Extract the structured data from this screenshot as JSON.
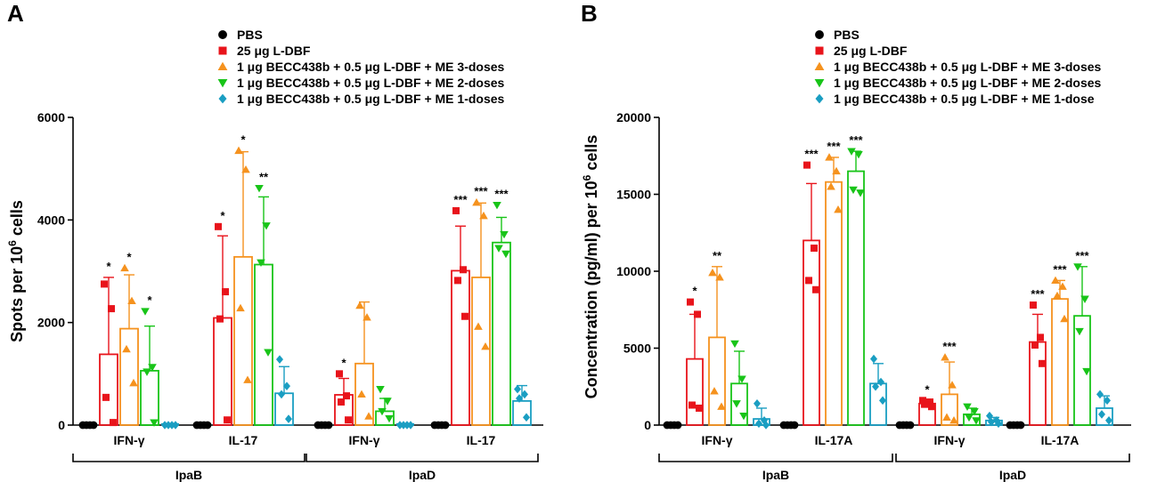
{
  "colors": {
    "PBS": "#000000",
    "LDBF": "#e8141b",
    "D3": "#f5921e",
    "D2": "#18c418",
    "D1": "#1a9ec2"
  },
  "chart_data": [
    {
      "type": "bar",
      "panel": "A",
      "ylabel": "Spots per 10^6 cells",
      "ylabel_main": "Spots per 10",
      "ylabel_sup": "6",
      "ylabel_tail": " cells",
      "ylim": [
        0,
        6000
      ],
      "yticks": [
        0,
        2000,
        4000,
        6000
      ],
      "ytick_labels": [
        "0",
        "2000",
        "4000",
        "6000"
      ],
      "legend": [
        {
          "name": "PBS",
          "marker": "circle"
        },
        {
          "name": "25 μg L-DBF",
          "marker": "square"
        },
        {
          "name": "1 μg BECC438b + 0.5 μg L-DBF + ME 3-doses",
          "marker": "triangle-up"
        },
        {
          "name": "1 μg BECC438b + 0.5 μg L-DBF + ME 2-doses",
          "marker": "triangle-down"
        },
        {
          "name": "1 μg BECC438b + 0.5 μg L-DBF + ME 1-doses",
          "marker": "diamond"
        }
      ],
      "groups": [
        {
          "label": "IpaB",
          "categories": [
            "IFN-γ",
            "IL-17"
          ]
        },
        {
          "label": "IpaD",
          "categories": [
            "IFN-γ",
            "IL-17"
          ]
        }
      ],
      "categories": [
        "IFN-γ",
        "IL-17",
        "IFN-γ",
        "IL-17"
      ],
      "series": [
        {
          "name": "PBS",
          "values": [
            0,
            0,
            0,
            0
          ],
          "sd": [
            0,
            0,
            0,
            0
          ],
          "points": [
            [
              0,
              0,
              0,
              0
            ],
            [
              0,
              0,
              0,
              0
            ],
            [
              0,
              0,
              0,
              0
            ],
            [
              0,
              0,
              0,
              0
            ]
          ],
          "sig": [
            "",
            "",
            "",
            ""
          ]
        },
        {
          "name": "25 μg L-DBF",
          "values": [
            1380,
            2090,
            590,
            3010
          ],
          "sd": [
            1500,
            1600,
            320,
            870
          ],
          "points": [
            [
              2750,
              2270,
              540,
              50
            ],
            [
              3870,
              2600,
              2070,
              100
            ],
            [
              1000,
              570,
              450,
              100
            ],
            [
              4180,
              3030,
              2820,
              2120
            ]
          ],
          "sig": [
            "*",
            "*",
            "*",
            "***"
          ]
        },
        {
          "name": "1 μg BECC438b + 0.5 μg L-DBF + ME 3-doses",
          "values": [
            1880,
            3280,
            1200,
            2880
          ],
          "sd": [
            1050,
            2050,
            1200,
            1450
          ],
          "points": [
            [
              3060,
              2420,
              1480,
              820
            ],
            [
              5350,
              4980,
              2280,
              880
            ],
            [
              2330,
              2100,
              600,
              170
            ],
            [
              4340,
              4080,
              1920,
              1530
            ]
          ],
          "sig": [
            "*",
            "*",
            "",
            "***"
          ]
        },
        {
          "name": "1 μg BECC438b + 0.5 μg L-DBF + ME 2-doses",
          "values": [
            1060,
            3130,
            270,
            3560
          ],
          "sd": [
            870,
            1320,
            250,
            490
          ],
          "points": [
            [
              2220,
              1130,
              1040,
              50
            ],
            [
              4620,
              3890,
              3170,
              1420
            ],
            [
              700,
              470,
              270,
              130
            ],
            [
              4290,
              3720,
              3450,
              3340
            ]
          ],
          "sig": [
            "*",
            "**",
            "",
            "***"
          ]
        },
        {
          "name": "1 μg BECC438b + 0.5 μg L-DBF + ME 1-doses",
          "values": [
            0,
            620,
            0,
            470
          ],
          "sd": [
            0,
            520,
            0,
            300
          ],
          "points": [
            [
              0,
              0,
              0,
              0
            ],
            [
              1280,
              760,
              600,
              120
            ],
            [
              0,
              0,
              0,
              0
            ],
            [
              700,
              600,
              520,
              150
            ]
          ],
          "sig": [
            "",
            "",
            "",
            ""
          ]
        }
      ]
    },
    {
      "type": "bar",
      "panel": "B",
      "ylabel": "Concentration (pg/ml) per 10^6 cells",
      "ylabel_main": "Concentration (pg/ml) per 10",
      "ylabel_sup": "6",
      "ylabel_tail": " cells",
      "ylim": [
        0,
        20000
      ],
      "yticks": [
        0,
        5000,
        10000,
        15000,
        20000
      ],
      "ytick_labels": [
        "0",
        "5000",
        "10000",
        "15000",
        "20000"
      ],
      "legend": [
        {
          "name": "PBS",
          "marker": "circle"
        },
        {
          "name": "25 μg L-DBF",
          "marker": "square"
        },
        {
          "name": "1 μg BECC438b + 0.5 μg L-DBF + ME 3-doses",
          "marker": "triangle-up"
        },
        {
          "name": "1 μg BECC438b + 0.5 μg L-DBF + ME 2-doses",
          "marker": "triangle-down"
        },
        {
          "name": "1 μg BECC438b + 0.5 μg L-DBF + ME 1-dose",
          "marker": "diamond"
        }
      ],
      "groups": [
        {
          "label": "IpaB",
          "categories": [
            "IFN-γ",
            "IL-17A"
          ]
        },
        {
          "label": "IpaD",
          "categories": [
            "IFN-γ",
            "IL-17A"
          ]
        }
      ],
      "categories": [
        "IFN-γ",
        "IL-17A",
        "IFN-γ",
        "IL-17A"
      ],
      "series": [
        {
          "name": "PBS",
          "values": [
            0,
            0,
            0,
            0
          ],
          "sd": [
            0,
            0,
            0,
            0
          ],
          "points": [
            [
              0,
              0,
              0,
              0
            ],
            [
              0,
              0,
              0,
              0
            ],
            [
              0,
              0,
              0,
              0
            ],
            [
              0,
              0,
              0,
              0
            ]
          ],
          "sig": [
            "",
            "",
            "",
            ""
          ]
        },
        {
          "name": "25 μg L-DBF",
          "values": [
            4300,
            12000,
            1400,
            5400
          ],
          "sd": [
            2900,
            3700,
            200,
            1800
          ],
          "points": [
            [
              8000,
              7200,
              1300,
              1100
            ],
            [
              16900,
              11500,
              9400,
              8800
            ],
            [
              1600,
              1500,
              1350,
              1200
            ],
            [
              7800,
              5700,
              5200,
              4000
            ]
          ],
          "sig": [
            "*",
            "***",
            "*",
            "***"
          ]
        },
        {
          "name": "1 μg BECC438b + 0.5 μg L-DBF + ME 3-doses",
          "values": [
            5700,
            15800,
            2000,
            8200
          ],
          "sd": [
            4600,
            1600,
            2100,
            1200
          ],
          "points": [
            [
              9900,
              9600,
              2200,
              1200
            ],
            [
              17400,
              16500,
              15500,
              14000
            ],
            [
              4400,
              2600,
              500,
              300
            ],
            [
              9400,
              9000,
              8400,
              6900
            ]
          ],
          "sig": [
            "**",
            "***",
            "***",
            "***"
          ]
        },
        {
          "name": "1 μg BECC438b + 0.5 μg L-DBF + ME 2-doses",
          "values": [
            2700,
            16500,
            700,
            7100
          ],
          "sd": [
            2100,
            1300,
            400,
            3200
          ],
          "points": [
            [
              5300,
              3000,
              1400,
              600
            ],
            [
              17800,
              17600,
              15300,
              15100
            ],
            [
              1200,
              900,
              500,
              300
            ],
            [
              10300,
              8200,
              6100,
              3500
            ]
          ],
          "sig": [
            "",
            "***",
            "",
            "***"
          ]
        },
        {
          "name": "1 μg BECC438b + 0.5 μg L-DBF + ME 1-dose",
          "values": [
            400,
            2700,
            300,
            1100
          ],
          "sd": [
            700,
            1300,
            200,
            800
          ],
          "points": [
            [
              1400,
              300,
              100,
              0
            ],
            [
              4300,
              2800,
              2500,
              1600
            ],
            [
              600,
              300,
              200,
              100
            ],
            [
              2000,
              1600,
              700,
              300
            ]
          ],
          "sig": [
            "",
            "",
            "",
            ""
          ]
        }
      ]
    }
  ]
}
